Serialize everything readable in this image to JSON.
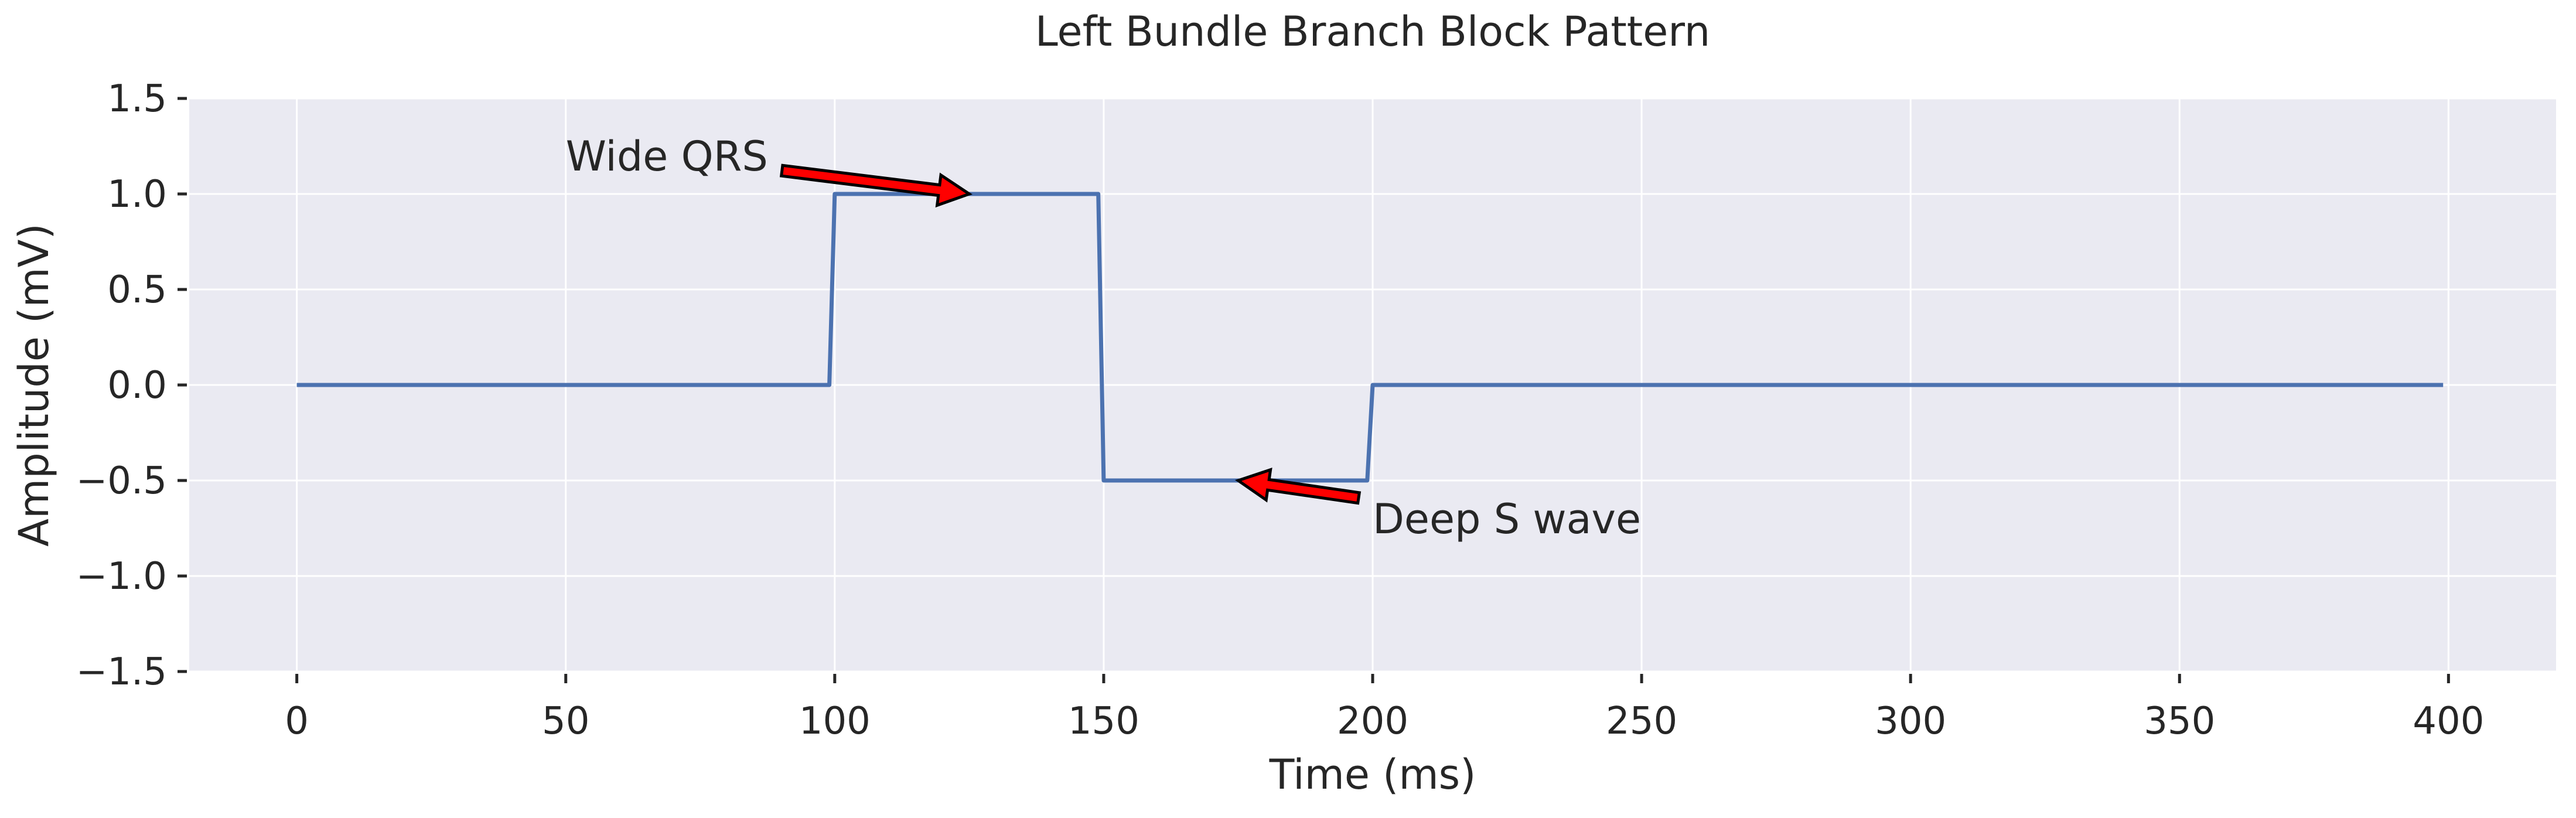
{
  "chart_data": {
    "type": "line",
    "title": "Left Bundle Branch Block Pattern",
    "xlabel": "Time (ms)",
    "ylabel": "Amplitude (mV)",
    "xlim": [
      -20,
      420
    ],
    "ylim": [
      -1.5,
      1.5
    ],
    "xticks": [
      0,
      50,
      100,
      150,
      200,
      250,
      300,
      350,
      400
    ],
    "yticks": [
      -1.5,
      -1.0,
      -0.5,
      0.0,
      0.5,
      1.0,
      1.5
    ],
    "xtick_labels": [
      "0",
      "50",
      "100",
      "150",
      "200",
      "250",
      "300",
      "350",
      "400"
    ],
    "ytick_labels": [
      "−1.5",
      "−1.0",
      "−0.5",
      "0.0",
      "0.5",
      "1.0",
      "1.5"
    ],
    "grid": true,
    "colors": {
      "line": "#4c72b0",
      "background": "#eaeaf2",
      "grid": "#ffffff",
      "arrow": "#ff0000"
    },
    "series": [
      {
        "x": [
          0,
          99,
          100,
          149,
          150,
          199,
          200,
          399
        ],
        "y": [
          0,
          0,
          1.0,
          1.0,
          -0.5,
          -0.5,
          0,
          0
        ]
      }
    ],
    "annotations": [
      {
        "text": "Wide QRS",
        "xy": [
          125,
          1.0
        ],
        "xytext": [
          50,
          1.2
        ]
      },
      {
        "text": "Deep S wave",
        "xy": [
          175,
          -0.5
        ],
        "xytext": [
          200,
          -0.7
        ]
      }
    ]
  }
}
